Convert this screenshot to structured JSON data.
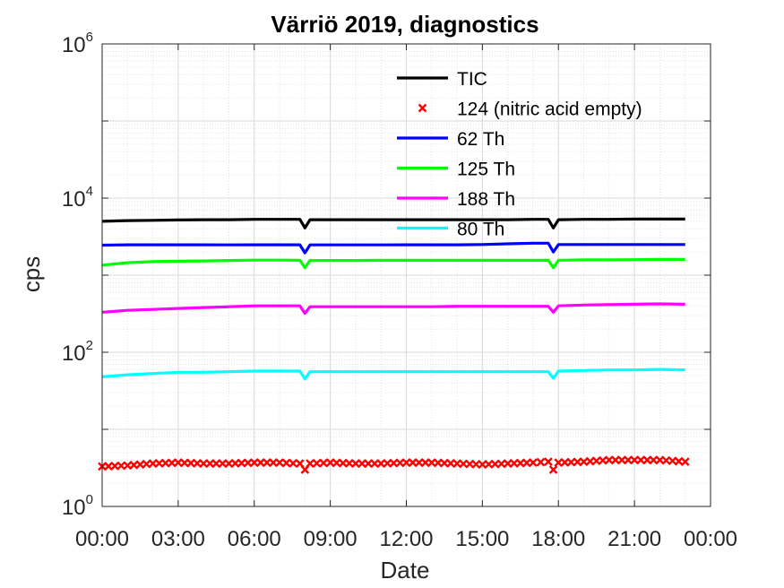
{
  "chart_data": {
    "type": "line",
    "title": "Värriö 2019, diagnostics",
    "xlabel": "Date",
    "ylabel": "cps",
    "yscale": "log",
    "ylim": [
      1,
      1000000
    ],
    "xlim": [
      "00:00",
      "24:00"
    ],
    "x_tick_labels": [
      "00:00",
      "03:00",
      "06:00",
      "09:00",
      "12:00",
      "15:00",
      "18:00",
      "21:00",
      "00:00"
    ],
    "y_ticks": [
      {
        "base": "10",
        "exp": "0"
      },
      {
        "base": "10",
        "exp": "2"
      },
      {
        "base": "10",
        "exp": "4"
      },
      {
        "base": "10",
        "exp": "6"
      }
    ],
    "grid": true,
    "legend_position": "top-right",
    "x_hours": [
      0,
      1,
      2,
      3,
      4,
      5,
      6,
      7,
      7.8,
      8.0,
      8.2,
      9,
      10,
      11,
      12,
      13,
      14,
      15,
      16,
      17,
      17.6,
      17.8,
      18.0,
      19,
      20,
      21,
      22,
      23
    ],
    "series": [
      {
        "name": "TIC",
        "color": "#000000",
        "style": "line",
        "values": [
          5000,
          5100,
          5150,
          5200,
          5250,
          5250,
          5300,
          5300,
          5300,
          4100,
          5250,
          5250,
          5250,
          5250,
          5250,
          5250,
          5250,
          5250,
          5250,
          5300,
          5300,
          4100,
          5250,
          5300,
          5300,
          5350,
          5350,
          5350
        ]
      },
      {
        "name": "124 (nitric acid empty)",
        "color": "#ff0000",
        "style": "marker",
        "values": [
          3.3,
          3.4,
          3.6,
          3.7,
          3.6,
          3.6,
          3.7,
          3.7,
          3.6,
          3.0,
          3.6,
          3.7,
          3.6,
          3.6,
          3.7,
          3.7,
          3.6,
          3.5,
          3.6,
          3.7,
          3.8,
          3.0,
          3.7,
          3.8,
          4.0,
          4.0,
          4.0,
          3.8
        ]
      },
      {
        "name": "62 Th",
        "color": "#0000ff",
        "style": "line",
        "values": [
          2450,
          2480,
          2480,
          2480,
          2480,
          2470,
          2480,
          2480,
          2480,
          1950,
          2470,
          2470,
          2470,
          2470,
          2480,
          2480,
          2480,
          2500,
          2550,
          2600,
          2600,
          2000,
          2500,
          2500,
          2500,
          2500,
          2500,
          2500
        ]
      },
      {
        "name": "125 Th",
        "color": "#00ff00",
        "style": "line",
        "values": [
          1350,
          1450,
          1500,
          1520,
          1530,
          1550,
          1570,
          1570,
          1560,
          1250,
          1550,
          1550,
          1550,
          1560,
          1560,
          1560,
          1560,
          1560,
          1560,
          1560,
          1560,
          1250,
          1560,
          1580,
          1580,
          1590,
          1600,
          1600
        ]
      },
      {
        "name": "188 Th",
        "color": "#ff00ff",
        "style": "line",
        "values": [
          330,
          350,
          360,
          370,
          380,
          390,
          400,
          400,
          400,
          320,
          390,
          390,
          390,
          390,
          390,
          390,
          395,
          395,
          395,
          395,
          395,
          330,
          400,
          410,
          415,
          420,
          425,
          420
        ]
      },
      {
        "name": "80 Th",
        "color": "#00ffff",
        "style": "line",
        "values": [
          48,
          51,
          53,
          55,
          55,
          56,
          57,
          57,
          57,
          45,
          56,
          56,
          56,
          56,
          56,
          56,
          56,
          56,
          56,
          56,
          56,
          46,
          57,
          58,
          59,
          59,
          60,
          59
        ]
      }
    ]
  }
}
